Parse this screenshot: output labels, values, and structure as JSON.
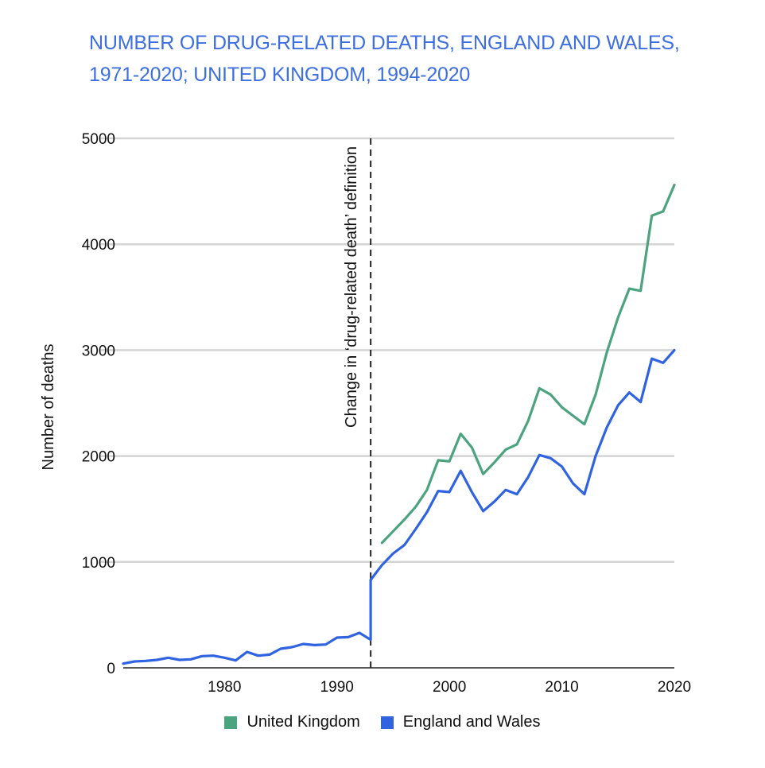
{
  "chart_data": {
    "type": "line",
    "title": "NUMBER OF DRUG-RELATED DEATHS, ENGLAND AND WALES, 1971-2020; UNITED KINGDOM, 1994-2020",
    "xlabel": "",
    "ylabel": "Number of deaths",
    "xlim": [
      1971,
      2020
    ],
    "ylim": [
      0,
      5000
    ],
    "x_ticks": [
      1980,
      1990,
      2000,
      2010,
      2020
    ],
    "y_ticks": [
      0,
      1000,
      2000,
      3000,
      4000,
      5000
    ],
    "grid": true,
    "legend_position": "bottom",
    "annotation": {
      "text": "Change in ‘drug-related death’ definition",
      "x": 1993
    },
    "series": [
      {
        "name": "United Kingdom",
        "color": "#4ca37f",
        "x": [
          1994,
          1995,
          1996,
          1997,
          1998,
          1999,
          2000,
          2001,
          2002,
          2003,
          2004,
          2005,
          2006,
          2007,
          2008,
          2009,
          2010,
          2011,
          2012,
          2013,
          2014,
          2015,
          2016,
          2017,
          2018,
          2019,
          2020
        ],
        "values": [
          1180,
          1290,
          1400,
          1520,
          1680,
          1960,
          1950,
          2210,
          2080,
          1830,
          1940,
          2060,
          2110,
          2330,
          2640,
          2580,
          2460,
          2380,
          2300,
          2580,
          2980,
          3310,
          3580,
          3560,
          4270,
          4310,
          4560
        ]
      },
      {
        "name": "England and Wales",
        "color": "#2f63e0",
        "x": [
          1971,
          1972,
          1973,
          1974,
          1975,
          1976,
          1977,
          1978,
          1979,
          1980,
          1981,
          1982,
          1983,
          1984,
          1985,
          1986,
          1987,
          1988,
          1989,
          1990,
          1991,
          1992,
          1993,
          1993,
          1994,
          1995,
          1996,
          1997,
          1998,
          1999,
          2000,
          2001,
          2002,
          2003,
          2004,
          2005,
          2006,
          2007,
          2008,
          2009,
          2010,
          2011,
          2012,
          2013,
          2014,
          2015,
          2016,
          2017,
          2018,
          2019,
          2020
        ],
        "values": [
          40,
          60,
          65,
          75,
          95,
          75,
          80,
          110,
          115,
          95,
          70,
          150,
          115,
          125,
          180,
          195,
          225,
          215,
          220,
          285,
          290,
          330,
          265,
          830,
          970,
          1080,
          1160,
          1310,
          1470,
          1670,
          1660,
          1860,
          1660,
          1480,
          1570,
          1680,
          1640,
          1800,
          2010,
          1980,
          1900,
          1740,
          1640,
          2000,
          2270,
          2480,
          2600,
          2510,
          2920,
          2880,
          3000
        ]
      }
    ]
  }
}
